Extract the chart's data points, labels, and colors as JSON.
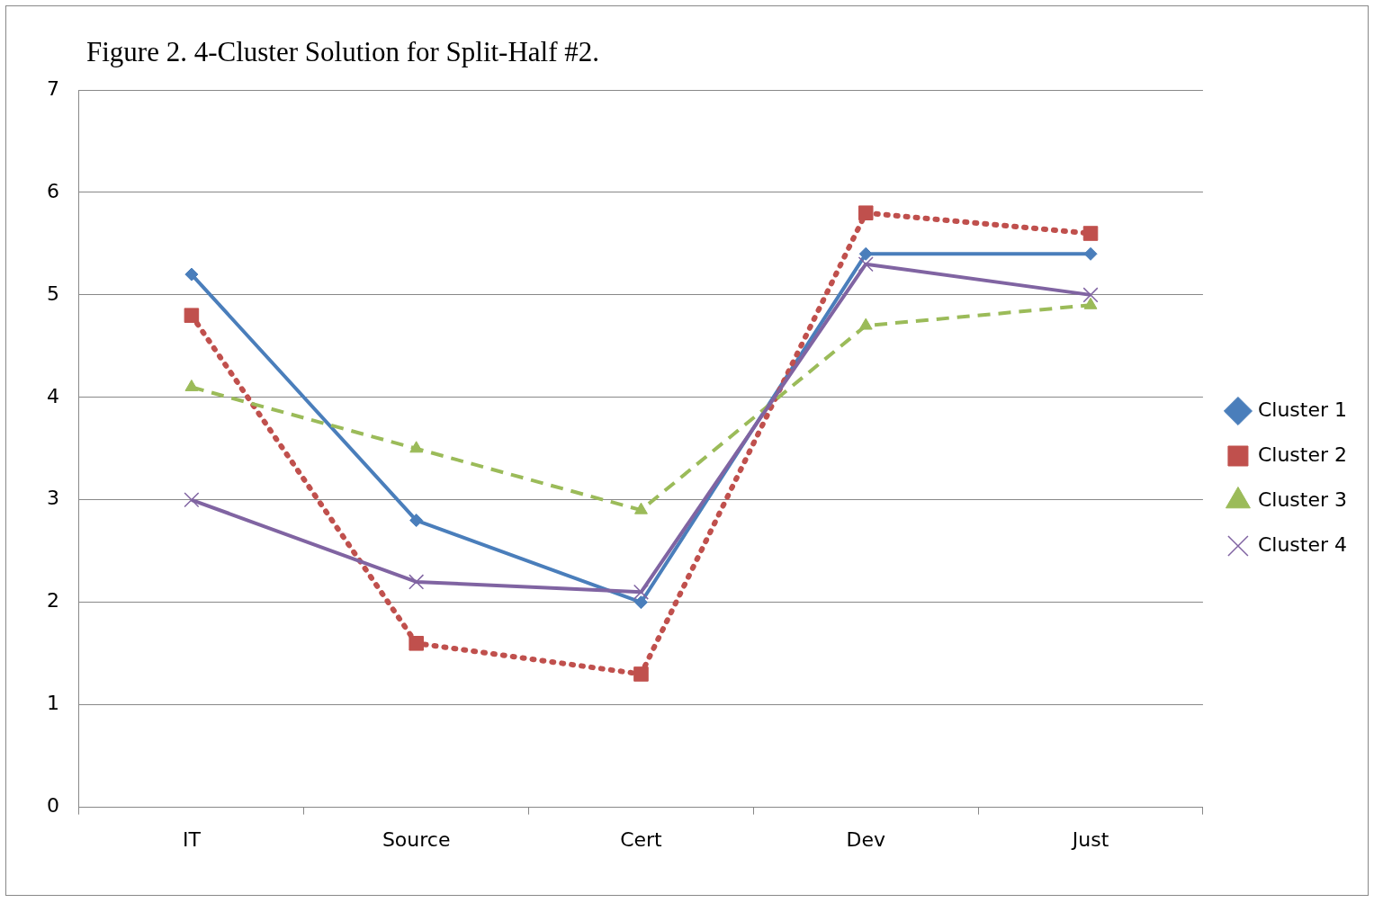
{
  "chart_data": {
    "type": "line",
    "title": "Figure 2. 4-Cluster Solution for Split-Half #2.",
    "categories": [
      "IT",
      "Source",
      "Cert",
      "Dev",
      "Just"
    ],
    "series": [
      {
        "name": "Cluster 1",
        "color": "#4a7ebb",
        "values": [
          5.2,
          2.8,
          2.0,
          5.4,
          5.4
        ],
        "marker": "diamond",
        "line_style": "solid"
      },
      {
        "name": "Cluster 2",
        "color": "#c0504d",
        "values": [
          4.8,
          1.6,
          1.3,
          5.8,
          5.6
        ],
        "marker": "square",
        "line_style": "dotted"
      },
      {
        "name": "Cluster 3",
        "color": "#9bbb59",
        "values": [
          4.1,
          3.5,
          2.9,
          4.7,
          4.9
        ],
        "marker": "triangle",
        "line_style": "dashed"
      },
      {
        "name": "Cluster 4",
        "color": "#8064a2",
        "values": [
          3.0,
          2.2,
          2.1,
          5.3,
          5.0
        ],
        "marker": "cross",
        "line_style": "solid"
      }
    ],
    "ylim": [
      0,
      7
    ],
    "yticks": [
      0,
      1,
      2,
      3,
      4,
      5,
      6,
      7
    ],
    "grid": "y",
    "legend": "right"
  }
}
